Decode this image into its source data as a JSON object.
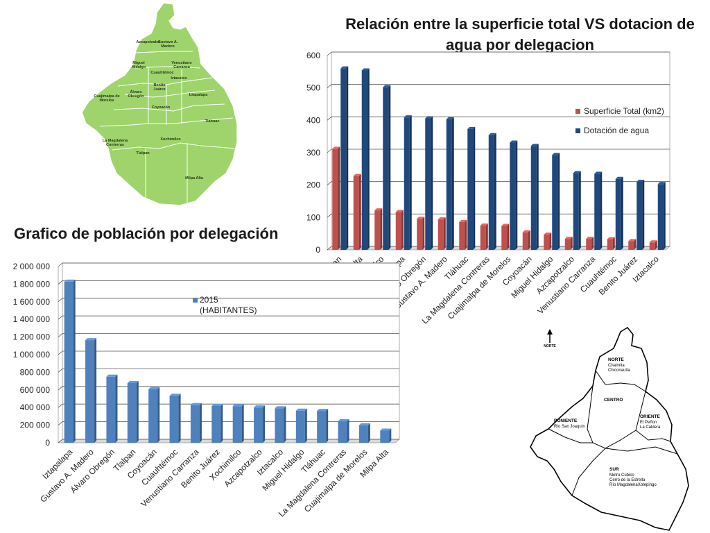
{
  "map_top": {
    "labels": [
      "Azcapotzalco",
      "Gustavo A. Madero",
      "Miguel Hidalgo",
      "Venustiano Carranza",
      "Cuauhtémoc",
      "Iztacalco",
      "Benito Juárez",
      "Álvaro Obregón",
      "Iztapalapa",
      "Cuajimalpa de Morelos",
      "Coyoacán",
      "Tláhuac",
      "La Magdalena Contreras",
      "Xochimilco",
      "Tlalpan",
      "Milpa Alta"
    ],
    "color": "#9ed46b"
  },
  "map_bottom": {
    "north_label": "NORTE",
    "regions": [
      {
        "title": "NORTE",
        "lines": [
          "Chalmita",
          "Chiconautla"
        ]
      },
      {
        "title": "CENTRO",
        "lines": []
      },
      {
        "title": "PONIENTE",
        "lines": [
          "Río San Joaquín"
        ]
      },
      {
        "title": "ORIENTE",
        "lines": [
          "El Peñon",
          "La Caldera"
        ]
      },
      {
        "title": "SUR",
        "lines": [
          "Metro Cúbico",
          "Cerro de la Estrella",
          "Río MagdalenaXotepingo"
        ]
      }
    ]
  },
  "chart_data": [
    {
      "type": "bar",
      "title": "Relación entre la superficie total  VS dotacion de agua por delegacion",
      "categories": [
        "Tlalpan",
        "Milpa Alta",
        "Xochimilco",
        "Iztapalapa",
        "Álvaro Obregón",
        "Gustavo A. Madero",
        "Tláhuac",
        "La Magdalena Contreras",
        "Cuajimalpa de Morelos",
        "Coyoacán",
        "Miguel Hidalgo",
        "Azcapotzalco",
        "Venustiano Carranza",
        "Cuauhtémoc",
        "Benito Juárez",
        "Iztacalco"
      ],
      "series": [
        {
          "name": "Superficie Total (km2)",
          "color": "#c0504d",
          "values": [
            312,
            228,
            122,
            117,
            96,
            94,
            86,
            75,
            74,
            54,
            47,
            34,
            34,
            33,
            27,
            23
          ]
        },
        {
          "name": "Dotación de agua",
          "color": "#1f497d",
          "values": [
            560,
            554,
            502,
            409,
            406,
            403,
            373,
            354,
            331,
            321,
            293,
            237,
            235,
            219,
            210,
            203
          ]
        }
      ],
      "yticks": [
        "0",
        "100",
        "200",
        "300",
        "400",
        "500",
        "600"
      ],
      "ylim": [
        0,
        600
      ],
      "legend": "right",
      "grid": true
    },
    {
      "type": "bar",
      "title": "Grafico de población por delegación",
      "categories": [
        "Iztapalapa",
        "Gustavo A. Madero",
        "Álvaro Obregón",
        "Tlalpan",
        "Coyoacán",
        "Cuauhtémoc",
        "Venustiano Carranza",
        "Benito Juárez",
        "Xochimilco",
        "Azcapotzalco",
        "Iztacalco",
        "Miguel Hidalgo",
        "Tláhuac",
        "La Magdalena Contreras",
        "Cuajimalpa de Morelos",
        "Milpa Alta"
      ],
      "series": [
        {
          "name": "2015 (HABITANTES)",
          "color": "#4f81bd",
          "values": [
            1827868,
            1164477,
            749982,
            677104,
            608479,
            532553,
            427263,
            417416,
            415933,
            400161,
            390348,
            364439,
            361593,
            243886,
            199224,
            137927
          ]
        }
      ],
      "legend_lines": [
        "2015",
        "(HABITANTES)"
      ],
      "yticks": [
        "0",
        "200 000",
        "400 000",
        "600 000",
        "800 000",
        "1 000 000",
        "1 200 000",
        "1 400 000",
        "1 600 000",
        "1 800 000",
        "2 000 000"
      ],
      "ylim": [
        0,
        2000000
      ],
      "legend": "top-right",
      "grid": true
    }
  ]
}
